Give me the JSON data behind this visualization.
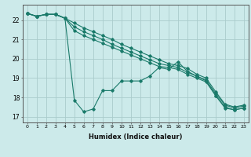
{
  "xlabel": "Humidex (Indice chaleur)",
  "ylabel": "",
  "background_color": "#cceaea",
  "grid_color": "#aacccc",
  "line_color": "#1a7a6a",
  "xlim": [
    -0.5,
    23.5
  ],
  "ylim": [
    16.7,
    22.8
  ],
  "xticks": [
    0,
    1,
    2,
    3,
    4,
    5,
    6,
    7,
    8,
    9,
    10,
    11,
    12,
    13,
    14,
    15,
    16,
    17,
    18,
    19,
    20,
    21,
    22,
    23
  ],
  "yticks": [
    17,
    18,
    19,
    20,
    21,
    22
  ],
  "series": [
    [
      22.35,
      22.2,
      22.3,
      22.3,
      22.1,
      17.85,
      17.25,
      17.4,
      18.35,
      18.35,
      18.85,
      18.85,
      18.85,
      19.1,
      19.55,
      19.45,
      19.85,
      19.35,
      19.1,
      18.85,
      18.1,
      17.45,
      17.35,
      17.45
    ],
    [
      22.35,
      22.2,
      22.3,
      22.3,
      22.1,
      21.45,
      21.2,
      21.0,
      20.8,
      20.6,
      20.4,
      20.2,
      20.0,
      19.8,
      19.6,
      19.55,
      19.45,
      19.2,
      19.0,
      18.8,
      18.1,
      17.5,
      17.35,
      17.45
    ],
    [
      22.35,
      22.2,
      22.3,
      22.3,
      22.1,
      21.65,
      21.4,
      21.2,
      21.0,
      20.75,
      20.55,
      20.35,
      20.15,
      19.95,
      19.75,
      19.65,
      19.55,
      19.3,
      19.1,
      18.9,
      18.2,
      17.6,
      17.45,
      17.55
    ],
    [
      22.35,
      22.2,
      22.3,
      22.3,
      22.1,
      21.85,
      21.6,
      21.4,
      21.2,
      21.0,
      20.75,
      20.55,
      20.35,
      20.15,
      19.95,
      19.75,
      19.65,
      19.5,
      19.2,
      19.0,
      18.3,
      17.65,
      17.5,
      17.6
    ]
  ]
}
